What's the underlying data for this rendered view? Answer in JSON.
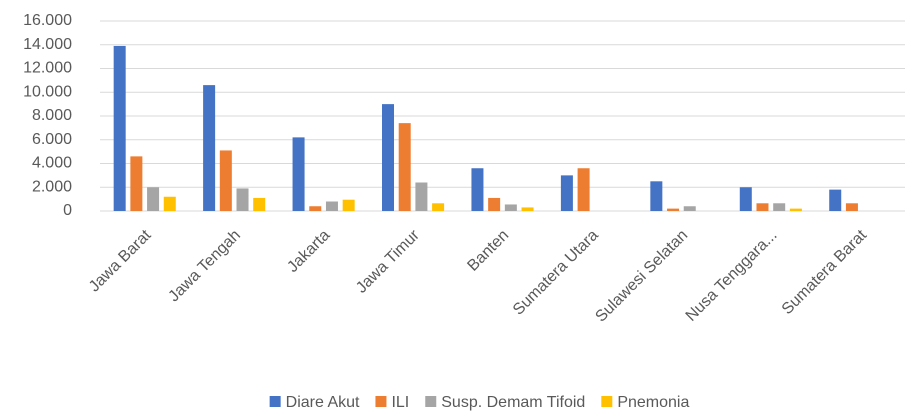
{
  "chart_data": {
    "type": "bar",
    "categories": [
      "Jawa Barat",
      "Jawa Tengah",
      "Jakarta",
      "Jawa Timur",
      "Banten",
      "Sumatera Utara",
      "Sulawesi Selatan",
      "Nusa Tenggara...",
      "Sumatera Barat"
    ],
    "series": [
      {
        "name": "Diare Akut",
        "color": "#4472c4",
        "values": [
          13900,
          10600,
          6200,
          9000,
          3600,
          3000,
          2500,
          2000,
          1800
        ]
      },
      {
        "name": "ILI",
        "color": "#ed7d31",
        "values": [
          4600,
          5100,
          400,
          7400,
          1100,
          3600,
          200,
          650,
          650
        ]
      },
      {
        "name": "Susp. Demam Tifoid",
        "color": "#a5a5a5",
        "values": [
          2000,
          1900,
          800,
          2400,
          550,
          0,
          400,
          650,
          0
        ]
      },
      {
        "name": "Pnemonia",
        "color": "#ffc000",
        "values": [
          1200,
          1100,
          950,
          650,
          300,
          0,
          0,
          200,
          0
        ]
      }
    ],
    "ylim": [
      0,
      16000
    ],
    "yticks": [
      0,
      {
        "value": 2000,
        "label": "2.000"
      },
      {
        "value": 4000,
        "label": "4.000"
      },
      {
        "value": 6000,
        "label": "6.000"
      },
      {
        "value": 8000,
        "label": "8.000"
      },
      {
        "value": 10000,
        "label": "10.000"
      },
      {
        "value": 12000,
        "label": "12.000"
      },
      {
        "value": 14000,
        "label": "14.000"
      },
      {
        "value": 16000,
        "label": "16.000"
      }
    ],
    "grid": true,
    "legend": "bottom"
  }
}
